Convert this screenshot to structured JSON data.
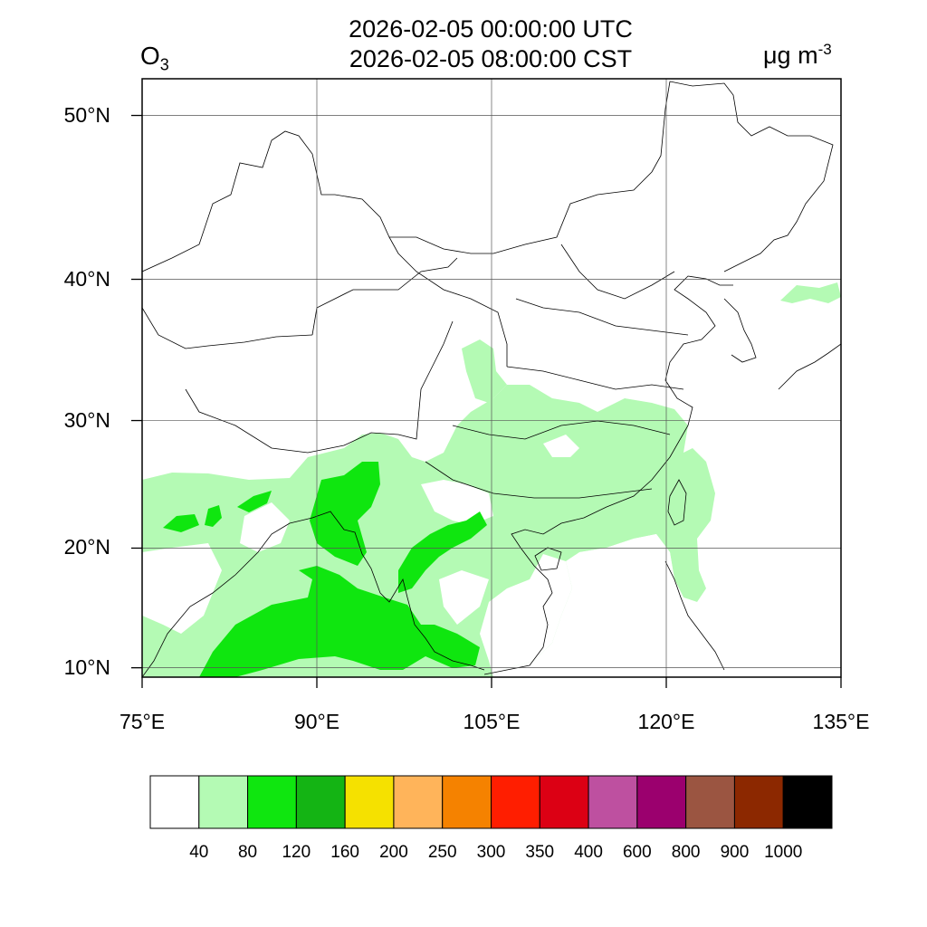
{
  "title": {
    "utc_time": "2026-02-05 00:00:00 UTC",
    "cst_time": "2026-02-05 08:00:00 CST"
  },
  "variable": {
    "symbol": "O",
    "subscript": "3"
  },
  "unit": {
    "base": "μg m",
    "exponent": "-3"
  },
  "map": {
    "lon_range": [
      75,
      135
    ],
    "lat_range": [
      9.2,
      52
    ],
    "lat_ticks": [
      {
        "value": 10,
        "label": "10°N"
      },
      {
        "value": 20,
        "label": "20°N"
      },
      {
        "value": 30,
        "label": "30°N"
      },
      {
        "value": 40,
        "label": "40°N"
      },
      {
        "value": 50,
        "label": "50°N"
      }
    ],
    "lon_ticks": [
      {
        "value": 75,
        "label": "75°E"
      },
      {
        "value": 90,
        "label": "90°E"
      },
      {
        "value": 105,
        "label": "105°E"
      },
      {
        "value": 120,
        "label": "120°E"
      },
      {
        "value": 135,
        "label": "135°E"
      }
    ],
    "gridline_color": "#555555"
  },
  "colorbar": {
    "colors": [
      "#ffffff",
      "#b4fab4",
      "#0fe60f",
      "#14b414",
      "#f5e100",
      "#ffb45a",
      "#f58200",
      "#ff1e00",
      "#dc0014",
      "#be50a0",
      "#9b006e",
      "#9b5541",
      "#8c2800",
      "#000000"
    ],
    "labels": [
      "40",
      "80",
      "120",
      "160",
      "200",
      "250",
      "300",
      "350",
      "400",
      "600",
      "800",
      "900",
      "1000"
    ]
  }
}
